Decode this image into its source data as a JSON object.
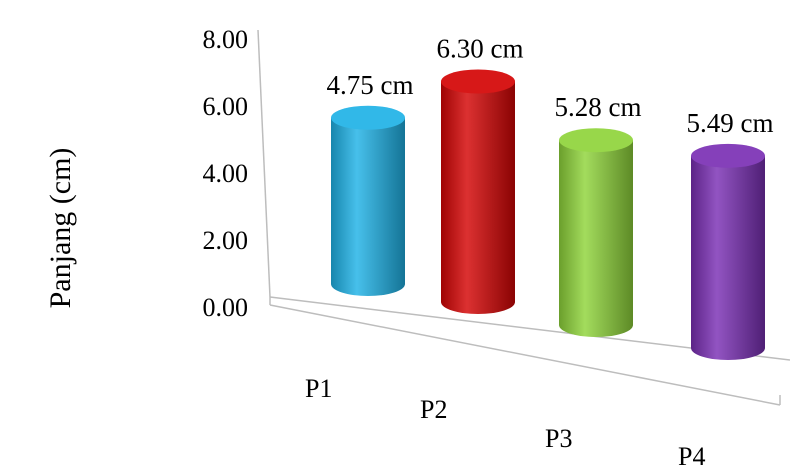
{
  "chart_data": {
    "type": "bar",
    "style": "3d-cylinder",
    "categories": [
      "P1",
      "P2",
      "P3",
      "P4"
    ],
    "values": [
      4.75,
      6.3,
      5.28,
      5.49
    ],
    "data_labels": [
      "4.75 cm",
      "6.30 cm",
      "5.28 cm",
      "5.49 cm"
    ],
    "colors": [
      "#1fb2e6",
      "#d40404",
      "#8fd43a",
      "#7a2fb4"
    ],
    "ylabel": "Panjang (cm)",
    "yticks": [
      "0.00",
      "2.00",
      "4.00",
      "6.00",
      "8.00"
    ],
    "ylim": [
      0,
      8
    ],
    "grid": false,
    "legend": "none"
  }
}
